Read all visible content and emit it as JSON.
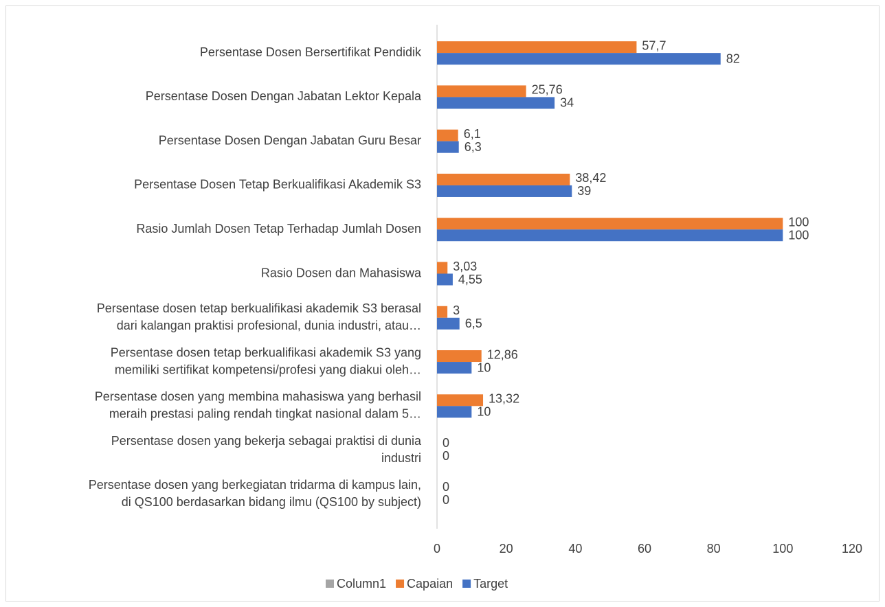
{
  "chart_data": {
    "type": "bar",
    "orientation": "horizontal",
    "categories": [
      [
        "Persentase Dosen Bersertifikat Pendidik"
      ],
      [
        "Persentase Dosen Dengan Jabatan Lektor Kepala"
      ],
      [
        "Persentase Dosen Dengan Jabatan Guru Besar"
      ],
      [
        "Persentase Dosen Tetap Berkualifikasi Akademik S3"
      ],
      [
        "Rasio Jumlah Dosen Tetap Terhadap Jumlah Dosen"
      ],
      [
        "Rasio Dosen dan Mahasiswa"
      ],
      [
        "Persentase dosen tetap berkualifikasi akademik S3  berasal",
        "dari kalangan praktisi profesional, dunia industri, atau…"
      ],
      [
        "Persentase dosen tetap berkualifikasi akademik S3 yang",
        "memiliki sertifikat kompetensi/profesi yang diakui oleh…"
      ],
      [
        "Persentase dosen yang membina mahasiswa yang berhasil",
        "meraih prestasi paling rendah tingkat nasional dalam 5…"
      ],
      [
        "Persentase dosen yang bekerja sebagai praktisi di dunia",
        "industri"
      ],
      [
        "Persentase dosen yang berkegiatan tridarma di kampus lain,",
        "di QS100 berdasarkan bidang ilmu (QS100 by subject)"
      ]
    ],
    "series": [
      {
        "name": "Column1",
        "color": "#a5a5a5",
        "values": [
          null,
          null,
          null,
          null,
          null,
          null,
          null,
          null,
          null,
          null,
          null
        ]
      },
      {
        "name": "Capaian",
        "color": "#ed7d31",
        "values": [
          57.7,
          25.76,
          6.1,
          38.42,
          100,
          3.03,
          3,
          12.86,
          13.32,
          0,
          0
        ],
        "value_labels": [
          "57,7",
          "25,76",
          "6,1",
          "38,42",
          "100",
          "3,03",
          "3",
          "12,86",
          "13,32",
          "0",
          "0"
        ]
      },
      {
        "name": "Target",
        "color": "#4472c4",
        "values": [
          82,
          34,
          6.3,
          39,
          100,
          4.55,
          6.5,
          10,
          10,
          0,
          0
        ],
        "value_labels": [
          "82",
          "34",
          "6,3",
          "39",
          "100",
          "4,55",
          "6,5",
          "10",
          "10",
          "0",
          "0"
        ]
      }
    ],
    "xlim": [
      0,
      120
    ],
    "xticks": [
      0,
      20,
      40,
      60,
      80,
      100,
      120
    ],
    "grid": false,
    "legend": "bottom"
  }
}
